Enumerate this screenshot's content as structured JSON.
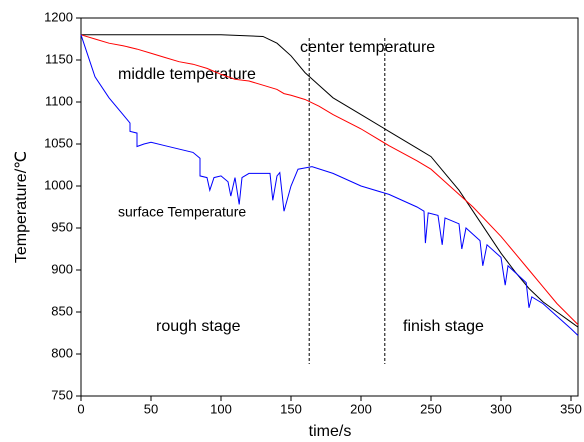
{
  "chart_data": {
    "type": "line",
    "xlabel": "time/s",
    "ylabel": "Temperature/℃",
    "xlim": [
      0,
      355
    ],
    "ylim": [
      750,
      1200
    ],
    "xticks": [
      0,
      50,
      100,
      150,
      200,
      250,
      300,
      350
    ],
    "yticks": [
      750,
      800,
      850,
      900,
      950,
      1000,
      1050,
      1100,
      1150,
      1200
    ],
    "vlines": [
      163,
      217
    ],
    "annotations": [
      "center temperature",
      "middle temperature",
      "surface Temperature",
      "rough stage",
      "finish stage"
    ],
    "series": [
      {
        "color": "#000000",
        "x": [
          0,
          50,
          100,
          130,
          140,
          150,
          160,
          170,
          180,
          200,
          220,
          240,
          250,
          260,
          270,
          280,
          290,
          300,
          310,
          320,
          330,
          340,
          350,
          355
        ],
        "values": [
          1180,
          1180,
          1180,
          1178,
          1170,
          1155,
          1135,
          1120,
          1105,
          1085,
          1065,
          1045,
          1035,
          1015,
          995,
          970,
          945,
          920,
          898,
          878,
          862,
          850,
          838,
          832
        ]
      },
      {
        "color": "#ff0000",
        "x": [
          0,
          10,
          20,
          30,
          40,
          50,
          60,
          70,
          80,
          90,
          100,
          110,
          120,
          130,
          140,
          145,
          150,
          160,
          170,
          180,
          200,
          220,
          240,
          250,
          260,
          280,
          300,
          320,
          330,
          340,
          355
        ],
        "values": [
          1180,
          1175,
          1170,
          1167,
          1163,
          1158,
          1153,
          1148,
          1145,
          1140,
          1133,
          1127,
          1125,
          1120,
          1115,
          1110,
          1108,
          1103,
          1095,
          1085,
          1068,
          1048,
          1030,
          1020,
          1005,
          975,
          940,
          900,
          880,
          860,
          835
        ]
      },
      {
        "color": "#0000ff",
        "x": [
          0,
          5,
          10,
          20,
          30,
          35,
          35,
          40,
          40,
          45,
          50,
          60,
          80,
          85,
          85,
          90,
          92,
          95,
          100,
          105,
          107,
          110,
          113,
          115,
          120,
          135,
          137,
          140,
          142,
          145,
          150,
          155,
          165,
          180,
          200,
          220,
          240,
          245,
          246,
          248,
          255,
          258,
          260,
          270,
          272,
          275,
          285,
          287,
          290,
          300,
          303,
          305,
          318,
          320,
          322,
          330,
          340,
          350,
          355
        ],
        "values": [
          1180,
          1155,
          1130,
          1105,
          1085,
          1075,
          1065,
          1063,
          1047,
          1050,
          1052,
          1048,
          1040,
          1033,
          1012,
          1010,
          995,
          1010,
          1012,
          1005,
          988,
          1010,
          978,
          1010,
          1015,
          1015,
          983,
          1012,
          1016,
          970,
          1000,
          1020,
          1023,
          1015,
          1000,
          990,
          975,
          970,
          932,
          968,
          965,
          930,
          962,
          955,
          925,
          950,
          935,
          905,
          930,
          915,
          882,
          905,
          885,
          855,
          868,
          860,
          845,
          830,
          822
        ]
      }
    ]
  }
}
